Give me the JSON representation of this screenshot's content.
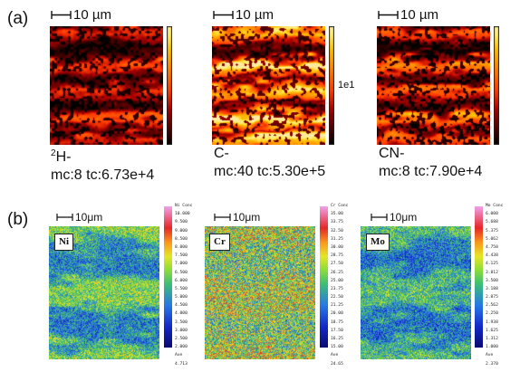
{
  "panel_a": {
    "label": "(a)",
    "maps": [
      {
        "scale": "10 µm",
        "caption_prefix_sup": "2",
        "caption_line1": "H-",
        "caption_line2": "mc:8 tc:6.73e+4",
        "colormap": "hot-dark"
      },
      {
        "scale": "10 µm",
        "caption_prefix_sup": "",
        "caption_line1": "C-",
        "caption_line2": "mc:40 tc:5.30e+5",
        "colormap": "hot-bright",
        "colorbar_label": "1e1"
      },
      {
        "scale": "10 µm",
        "caption_prefix_sup": "",
        "caption_line1": "CN-",
        "caption_line2": "mc:8 tc:7.90e+4",
        "colormap": "hot-mid"
      }
    ]
  },
  "panel_b": {
    "label": "(b)",
    "maps": [
      {
        "element": "Ni",
        "scale": "10μm",
        "legend_header": [
          "Ni",
          "Conc"
        ],
        "legend_values": [
          "10.000",
          "9.500",
          "9.000",
          "8.500",
          "8.000",
          "7.500",
          "7.000",
          "6.500",
          "6.000",
          "5.500",
          "5.000",
          "4.500",
          "4.000",
          "3.500",
          "3.000",
          "2.500",
          "2.000"
        ],
        "legend_footer": [
          "Ave",
          "4.713"
        ]
      },
      {
        "element": "Cr",
        "scale": "10μm",
        "legend_header": [
          "Cr",
          "Conc"
        ],
        "legend_values": [
          "35.00",
          "33.75",
          "32.50",
          "31.25",
          "30.00",
          "28.75",
          "27.50",
          "26.25",
          "25.00",
          "23.75",
          "22.50",
          "21.25",
          "20.00",
          "18.75",
          "17.50",
          "16.25",
          "15.00"
        ],
        "legend_footer": [
          "Ave",
          "24.65"
        ]
      },
      {
        "element": "Mo",
        "scale": "10μm",
        "legend_header": [
          "Mo",
          "Conc"
        ],
        "legend_values": [
          "6.000",
          "5.688",
          "5.375",
          "5.062",
          "4.750",
          "4.438",
          "4.125",
          "3.812",
          "3.500",
          "3.188",
          "2.875",
          "2.562",
          "2.250",
          "1.938",
          "1.625",
          "1.312",
          "1.000"
        ],
        "legend_footer": [
          "Ave",
          "2.370"
        ]
      }
    ]
  }
}
